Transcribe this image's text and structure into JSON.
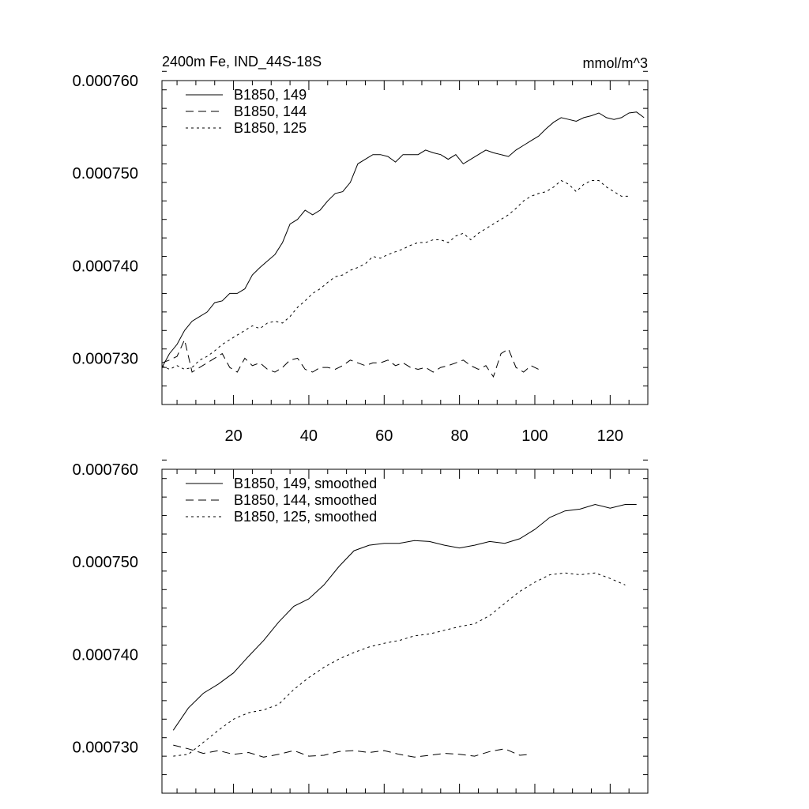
{
  "chart_data": [
    {
      "type": "line",
      "title": "2400m Fe, IND_44S-18S",
      "units": "mmol/m^3",
      "xlim": [
        1,
        130
      ],
      "ylim": [
        0.000725,
        0.00076
      ],
      "xticks": [
        20,
        40,
        60,
        80,
        100,
        120
      ],
      "xtick_labels": [
        "20",
        "40",
        "60",
        "80",
        "100",
        "120"
      ],
      "yticks": [
        0.00073,
        0.00074,
        0.00075,
        0.00076
      ],
      "ytick_labels": [
        "0.000730",
        "0.000740",
        "0.000750",
        "0.000760"
      ],
      "legend_position": "top-left",
      "series": [
        {
          "name": "B1850, 149",
          "style": "solid",
          "x": [
            1,
            3,
            5,
            7,
            9,
            11,
            13,
            15,
            17,
            19,
            21,
            23,
            25,
            27,
            29,
            31,
            33,
            35,
            37,
            39,
            41,
            43,
            45,
            47,
            49,
            51,
            53,
            55,
            57,
            59,
            61,
            63,
            65,
            67,
            69,
            71,
            73,
            75,
            77,
            79,
            81,
            83,
            85,
            87,
            89,
            91,
            93,
            95,
            97,
            99,
            101,
            103,
            105,
            107,
            109,
            111,
            113,
            115,
            117,
            119,
            121,
            123,
            125,
            127,
            129
          ],
          "values": [
            0.000729,
            0.0007305,
            0.0007315,
            0.000733,
            0.000734,
            0.0007345,
            0.000735,
            0.000736,
            0.0007362,
            0.000737,
            0.000737,
            0.0007375,
            0.000739,
            0.0007398,
            0.0007405,
            0.0007412,
            0.0007425,
            0.0007445,
            0.000745,
            0.000746,
            0.0007455,
            0.000746,
            0.000747,
            0.0007478,
            0.000748,
            0.000749,
            0.000751,
            0.0007515,
            0.000752,
            0.000752,
            0.0007518,
            0.0007512,
            0.000752,
            0.000752,
            0.000752,
            0.0007525,
            0.0007522,
            0.000752,
            0.0007515,
            0.000752,
            0.000751,
            0.0007515,
            0.000752,
            0.0007525,
            0.0007522,
            0.000752,
            0.0007518,
            0.0007525,
            0.000753,
            0.0007535,
            0.000754,
            0.0007548,
            0.0007555,
            0.000756,
            0.0007558,
            0.0007556,
            0.000756,
            0.0007562,
            0.0007565,
            0.000756,
            0.0007558,
            0.000756,
            0.0007565,
            0.0007566,
            0.000756
          ]
        },
        {
          "name": "B1850, 144",
          "style": "dashed",
          "x": [
            1,
            3,
            5,
            7,
            9,
            11,
            13,
            15,
            17,
            19,
            21,
            23,
            25,
            27,
            29,
            31,
            33,
            35,
            37,
            39,
            41,
            43,
            45,
            47,
            49,
            51,
            53,
            55,
            57,
            59,
            61,
            63,
            65,
            67,
            69,
            71,
            73,
            75,
            77,
            79,
            81,
            83,
            85,
            87,
            89,
            91,
            93,
            95,
            97,
            99,
            101
          ],
          "values": [
            0.0007295,
            0.0007298,
            0.0007302,
            0.000732,
            0.0007285,
            0.000729,
            0.0007295,
            0.00073,
            0.0007305,
            0.000729,
            0.0007285,
            0.00073,
            0.0007292,
            0.0007295,
            0.0007288,
            0.0007285,
            0.000729,
            0.0007298,
            0.00073,
            0.0007288,
            0.0007285,
            0.000729,
            0.000729,
            0.0007288,
            0.0007292,
            0.0007298,
            0.0007295,
            0.0007292,
            0.0007295,
            0.0007295,
            0.0007298,
            0.0007292,
            0.0007295,
            0.000729,
            0.0007288,
            0.000729,
            0.0007285,
            0.000729,
            0.0007292,
            0.0007295,
            0.0007298,
            0.0007292,
            0.0007288,
            0.0007292,
            0.000728,
            0.0007305,
            0.000731,
            0.000729,
            0.0007285,
            0.0007292,
            0.0007288
          ]
        },
        {
          "name": "B1850, 125",
          "style": "dotted",
          "x": [
            1,
            3,
            5,
            7,
            9,
            11,
            13,
            15,
            17,
            19,
            21,
            23,
            25,
            27,
            29,
            31,
            33,
            35,
            37,
            39,
            41,
            43,
            45,
            47,
            49,
            51,
            53,
            55,
            57,
            59,
            61,
            63,
            65,
            67,
            69,
            71,
            73,
            75,
            77,
            79,
            81,
            83,
            85,
            87,
            89,
            91,
            93,
            95,
            97,
            99,
            101,
            103,
            105,
            107,
            109,
            111,
            113,
            115,
            117,
            119,
            121,
            123,
            125
          ],
          "values": [
            0.0007292,
            0.0007288,
            0.0007292,
            0.0007288,
            0.000729,
            0.0007298,
            0.0007302,
            0.0007308,
            0.0007315,
            0.000732,
            0.0007325,
            0.000733,
            0.0007335,
            0.0007332,
            0.0007338,
            0.000734,
            0.0007338,
            0.0007345,
            0.0007355,
            0.0007362,
            0.000737,
            0.0007375,
            0.0007382,
            0.0007388,
            0.000739,
            0.0007395,
            0.0007398,
            0.0007402,
            0.000741,
            0.0007408,
            0.0007412,
            0.0007415,
            0.0007418,
            0.0007422,
            0.0007425,
            0.0007425,
            0.0007428,
            0.0007428,
            0.0007425,
            0.0007432,
            0.0007435,
            0.0007428,
            0.0007435,
            0.000744,
            0.0007445,
            0.000745,
            0.0007455,
            0.0007462,
            0.000747,
            0.0007475,
            0.0007478,
            0.000748,
            0.0007485,
            0.0007492,
            0.0007488,
            0.000748,
            0.0007488,
            0.0007492,
            0.0007492,
            0.0007485,
            0.000748,
            0.0007475,
            0.0007475
          ]
        }
      ]
    },
    {
      "type": "line",
      "xlim": [
        1,
        130
      ],
      "ylim": [
        0.000725,
        0.00076
      ],
      "xticks": [
        20,
        40,
        60,
        80,
        100,
        120
      ],
      "xtick_labels": [],
      "yticks": [
        0.00073,
        0.00074,
        0.00075,
        0.00076
      ],
      "ytick_labels": [
        "0.000730",
        "0.000740",
        "0.000750",
        "0.000760"
      ],
      "legend_position": "top-left",
      "series": [
        {
          "name": "B1850, 149, smoothed",
          "style": "solid",
          "x": [
            4,
            8,
            12,
            16,
            20,
            24,
            28,
            32,
            36,
            40,
            44,
            48,
            52,
            56,
            60,
            64,
            68,
            72,
            76,
            80,
            84,
            88,
            92,
            96,
            100,
            104,
            108,
            112,
            116,
            120,
            124,
            127
          ],
          "values": [
            0.0007318,
            0.0007342,
            0.0007358,
            0.0007368,
            0.000738,
            0.0007398,
            0.0007415,
            0.0007435,
            0.0007452,
            0.000746,
            0.0007475,
            0.0007495,
            0.0007512,
            0.0007518,
            0.000752,
            0.000752,
            0.0007523,
            0.0007522,
            0.0007518,
            0.0007515,
            0.0007518,
            0.0007522,
            0.000752,
            0.0007525,
            0.0007535,
            0.0007548,
            0.0007555,
            0.0007557,
            0.0007562,
            0.0007558,
            0.0007562,
            0.0007562
          ]
        },
        {
          "name": "B1850, 144, smoothed",
          "style": "dashed",
          "x": [
            4,
            8,
            12,
            16,
            20,
            24,
            28,
            32,
            36,
            40,
            44,
            48,
            52,
            56,
            60,
            64,
            68,
            72,
            76,
            80,
            84,
            88,
            92,
            96,
            99
          ],
          "values": [
            0.0007302,
            0.0007298,
            0.0007293,
            0.0007296,
            0.0007292,
            0.0007294,
            0.0007289,
            0.0007292,
            0.0007296,
            0.000729,
            0.0007291,
            0.0007295,
            0.0007296,
            0.0007294,
            0.0007296,
            0.0007292,
            0.0007289,
            0.0007291,
            0.0007293,
            0.0007292,
            0.000729,
            0.0007295,
            0.0007298,
            0.0007291,
            0.0007292
          ]
        },
        {
          "name": "B1850, 125, smoothed",
          "style": "dotted",
          "x": [
            4,
            8,
            12,
            16,
            20,
            24,
            28,
            32,
            36,
            40,
            44,
            48,
            52,
            56,
            60,
            64,
            68,
            72,
            76,
            80,
            84,
            88,
            92,
            96,
            100,
            104,
            108,
            112,
            116,
            120,
            124
          ],
          "values": [
            0.000729,
            0.0007292,
            0.0007305,
            0.0007318,
            0.000733,
            0.0007337,
            0.000734,
            0.0007346,
            0.0007362,
            0.0007375,
            0.0007386,
            0.0007395,
            0.0007402,
            0.0007408,
            0.0007412,
            0.0007415,
            0.000742,
            0.0007422,
            0.0007426,
            0.000743,
            0.0007433,
            0.0007442,
            0.0007455,
            0.0007468,
            0.0007478,
            0.0007486,
            0.0007488,
            0.0007486,
            0.0007488,
            0.0007482,
            0.0007475
          ]
        }
      ]
    }
  ]
}
